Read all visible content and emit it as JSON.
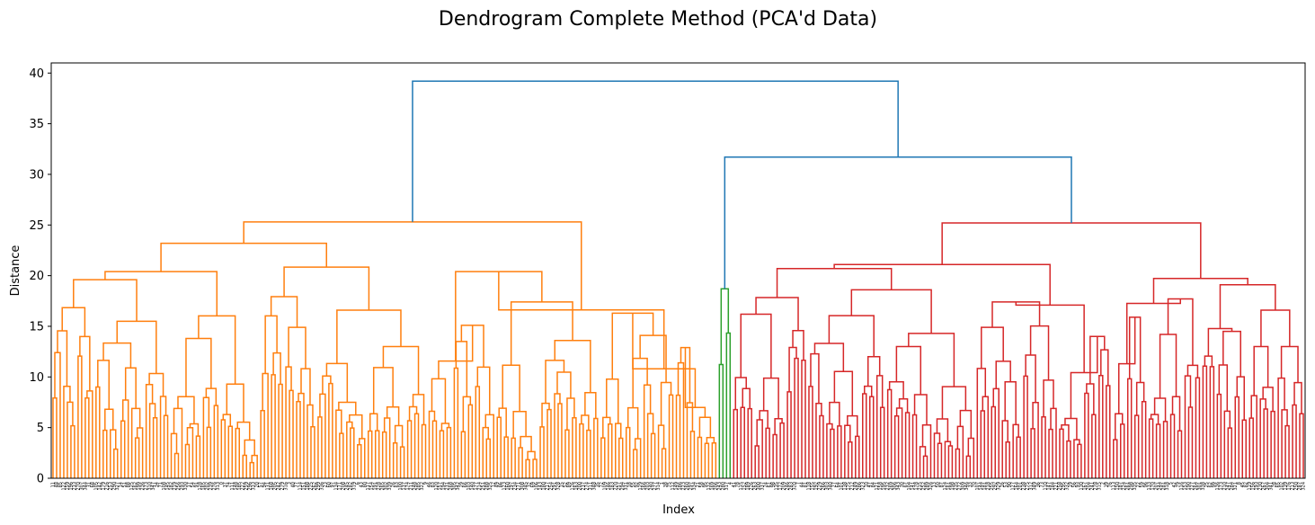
{
  "chart_data": {
    "type": "dendrogram",
    "title": "Dendrogram Complete Method (PCA'd Data)",
    "xlabel": "Index",
    "ylabel": "Distance",
    "ylim": [
      0,
      41
    ],
    "yticks": [
      0,
      5,
      10,
      15,
      20,
      25,
      30,
      35,
      40
    ],
    "grid": false,
    "legend": "none",
    "leaf_count": 350,
    "colors": {
      "cluster_1": "#ff7f0e",
      "cluster_2": "#2ca02c",
      "cluster_3": "#d62728",
      "above_threshold": "#1f77b4"
    },
    "clusters": [
      {
        "color_key": "cluster_1",
        "leaves": 186,
        "merge_height": 25.3
      },
      {
        "color_key": "cluster_2",
        "leaves": 4,
        "merge_height": 18.7
      },
      {
        "color_key": "cluster_3",
        "leaves": 160,
        "merge_height": 25.2
      }
    ],
    "top_merges": [
      {
        "height": 39.2
      },
      {
        "height": 31.7
      }
    ],
    "sub_merges": {
      "cluster_1": [
        23.2,
        20.4,
        20.4,
        19.6,
        17.4,
        16.6,
        16.3,
        15.5,
        15.1,
        14.9,
        14.1,
        13.8,
        13.6,
        13.0,
        12.9
      ],
      "cluster_2": [
        11.8,
        9.5,
        6.5
      ],
      "cluster_3": [
        21.1,
        20.7,
        19.1,
        18.6,
        17.7,
        17.4,
        16.6,
        16.2,
        15.9,
        14.9,
        14.5,
        14.3,
        14.2,
        14.0,
        13.0
      ]
    }
  }
}
